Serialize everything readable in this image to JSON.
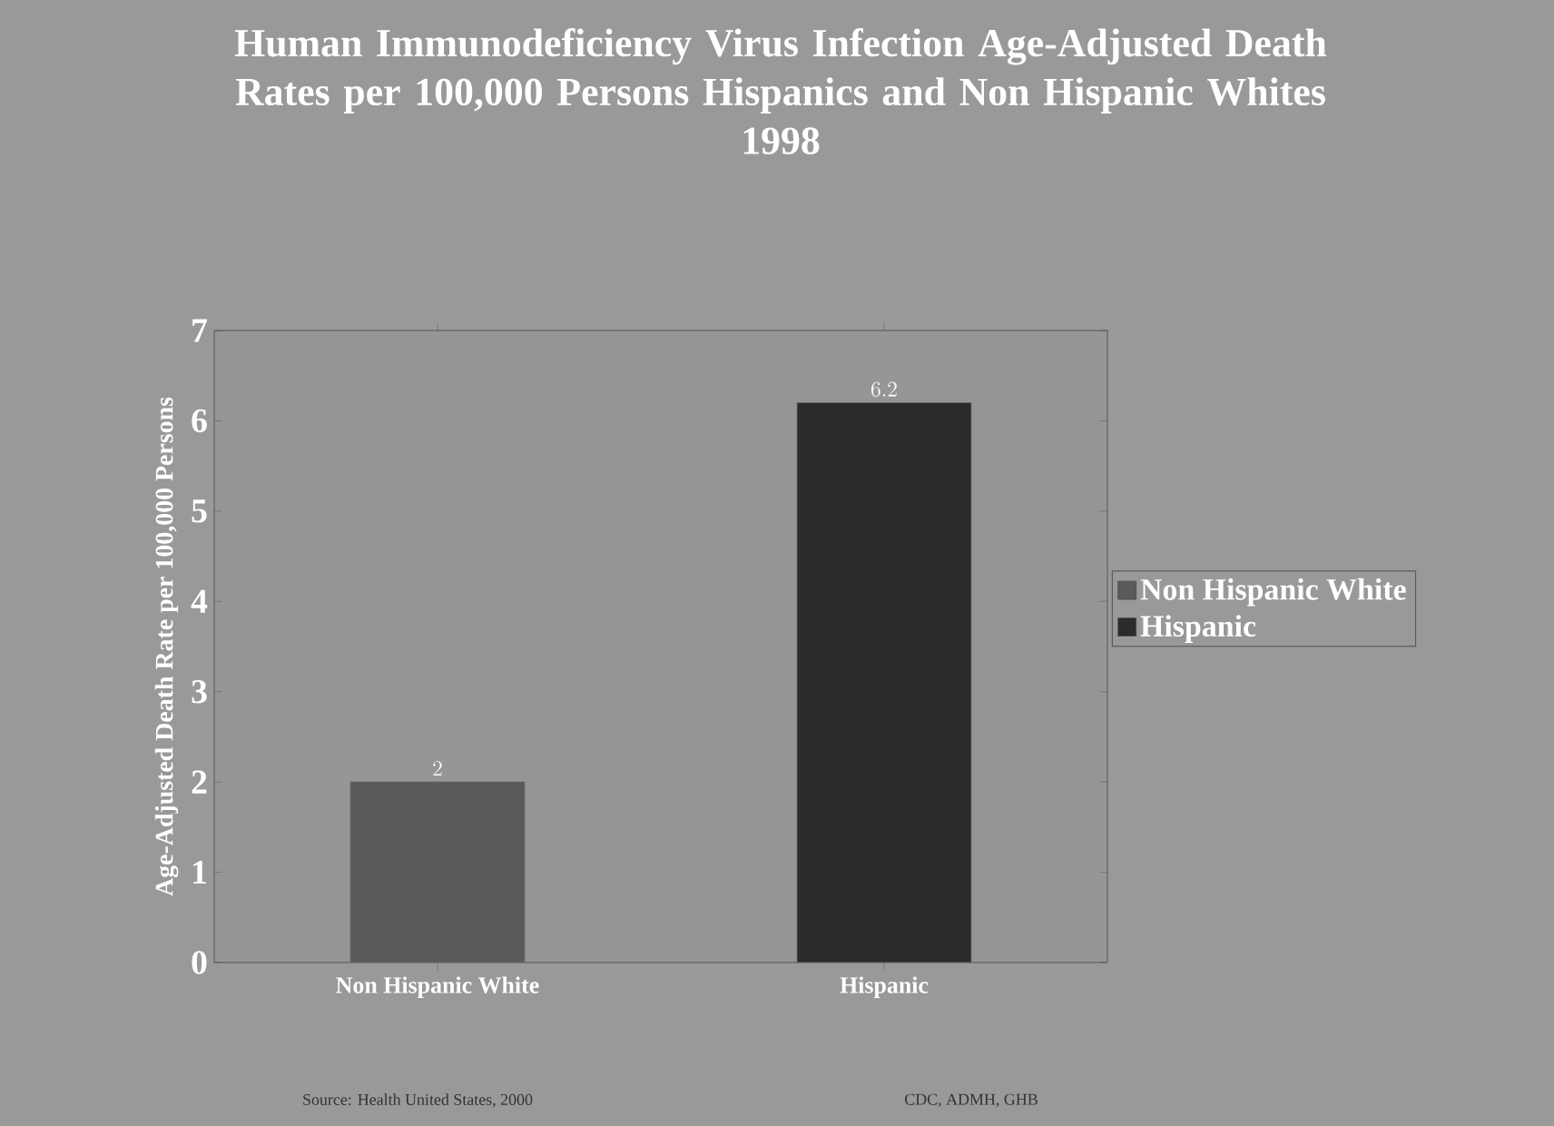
{
  "chart_data": {
    "type": "bar",
    "title": "Human Immunodeficiency Virus Infection Age-Adjusted Death Rates per 100,000 Persons Hispanics and Non Hispanic Whites",
    "subtitle": "1998",
    "ylabel": "Age-Adjusted Death Rate per 100,000 Persons",
    "categories": [
      "Non Hispanic White",
      "Hispanic"
    ],
    "series": [
      {
        "name": "Non Hispanic White",
        "color": "#5a5a5a",
        "values": [
          2,
          null
        ]
      },
      {
        "name": "Hispanic",
        "color": "#2b2b2b",
        "values": [
          null,
          6.2
        ]
      }
    ],
    "ylim": [
      0,
      7
    ],
    "yticks": [
      0,
      1,
      2,
      3,
      4,
      5,
      6,
      7
    ],
    "data_labels": true,
    "legend": "right",
    "annotations": [
      "Source: Health United States, 2000",
      "CDC, ADMH, GHB"
    ]
  }
}
